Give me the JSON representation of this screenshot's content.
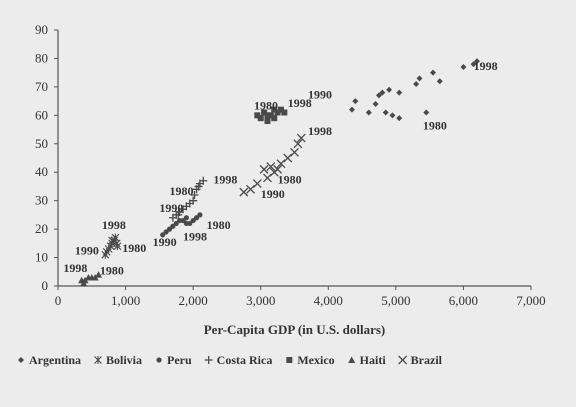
{
  "chart_data": {
    "type": "scatter",
    "title": "",
    "xlabel": "Per-Capita GDP (in U.S. dollars)",
    "ylabel": "",
    "xlim": [
      0,
      7000
    ],
    "ylim": [
      0,
      90
    ],
    "x_ticks": [
      0,
      1000,
      2000,
      3000,
      4000,
      5000,
      6000,
      7000
    ],
    "x_tick_labels": [
      "0",
      "1,000",
      "2,000",
      "3,000",
      "4,000",
      "5,000",
      "6,000",
      "7,000"
    ],
    "y_ticks": [
      0,
      10,
      20,
      30,
      40,
      50,
      60,
      70,
      80,
      90
    ],
    "y_tick_labels": [
      "0",
      "10",
      "20",
      "30",
      "40",
      "50",
      "60",
      "70",
      "80",
      "90"
    ],
    "grid": false,
    "legend_position": "bottom",
    "series": [
      {
        "name": "Argentina",
        "marker": "diamond",
        "points": [
          [
            4350,
            62
          ],
          [
            4400,
            65
          ],
          [
            4600,
            61
          ],
          [
            4700,
            64
          ],
          [
            4750,
            67
          ],
          [
            4800,
            68
          ],
          [
            4850,
            61
          ],
          [
            4900,
            69
          ],
          [
            4950,
            60
          ],
          [
            5050,
            59
          ],
          [
            5050,
            68
          ],
          [
            5300,
            71
          ],
          [
            5350,
            73
          ],
          [
            5450,
            61
          ],
          [
            5550,
            75
          ],
          [
            5650,
            72
          ],
          [
            6000,
            77
          ],
          [
            6150,
            78
          ],
          [
            6200,
            79
          ]
        ]
      },
      {
        "name": "Bolivia",
        "marker": "star",
        "points": [
          [
            700,
            11
          ],
          [
            720,
            12
          ],
          [
            750,
            13
          ],
          [
            780,
            14
          ],
          [
            800,
            15
          ],
          [
            830,
            16
          ],
          [
            850,
            17
          ],
          [
            870,
            15
          ],
          [
            880,
            14
          ],
          [
            800,
            16
          ]
        ]
      },
      {
        "name": "Peru",
        "marker": "circle",
        "points": [
          [
            1550,
            18
          ],
          [
            1600,
            19
          ],
          [
            1650,
            20
          ],
          [
            1700,
            21
          ],
          [
            1750,
            22
          ],
          [
            1800,
            23
          ],
          [
            1850,
            23
          ],
          [
            1900,
            24
          ],
          [
            1950,
            22
          ],
          [
            2000,
            23
          ],
          [
            2050,
            24
          ],
          [
            2100,
            25
          ],
          [
            1900,
            22
          ]
        ]
      },
      {
        "name": "Costa Rica",
        "marker": "plus",
        "points": [
          [
            1700,
            24
          ],
          [
            1750,
            25
          ],
          [
            1800,
            26
          ],
          [
            1850,
            27
          ],
          [
            1900,
            28
          ],
          [
            1950,
            29
          ],
          [
            2000,
            30
          ],
          [
            2020,
            32
          ],
          [
            2050,
            34
          ],
          [
            2080,
            35
          ],
          [
            2100,
            36
          ],
          [
            2150,
            37
          ],
          [
            1780,
            25
          ]
        ]
      },
      {
        "name": "Mexico",
        "marker": "square",
        "points": [
          [
            2950,
            60
          ],
          [
            3000,
            59
          ],
          [
            3050,
            61
          ],
          [
            3100,
            58
          ],
          [
            3150,
            60
          ],
          [
            3200,
            62
          ],
          [
            3250,
            61
          ],
          [
            3300,
            62
          ],
          [
            3350,
            61
          ],
          [
            3200,
            59
          ],
          [
            3100,
            60
          ]
        ]
      },
      {
        "name": "Haiti",
        "marker": "triangle",
        "points": [
          [
            350,
            2
          ],
          [
            400,
            2
          ],
          [
            450,
            3
          ],
          [
            500,
            3
          ],
          [
            550,
            3
          ],
          [
            600,
            4
          ],
          [
            380,
            1
          ]
        ]
      },
      {
        "name": "Brazil",
        "marker": "x",
        "points": [
          [
            2750,
            33
          ],
          [
            2850,
            34
          ],
          [
            2950,
            36
          ],
          [
            3050,
            41
          ],
          [
            3100,
            38
          ],
          [
            3150,
            42
          ],
          [
            3200,
            40
          ],
          [
            3250,
            41
          ],
          [
            3300,
            43
          ],
          [
            3400,
            45
          ],
          [
            3500,
            47
          ],
          [
            3550,
            50
          ],
          [
            3600,
            52
          ]
        ]
      }
    ],
    "annotations": [
      {
        "text": "1998",
        "x": 6150,
        "y": 76
      },
      {
        "text": "1990",
        "x": 3700,
        "y": 66
      },
      {
        "text": "1980",
        "x": 5400,
        "y": 55
      },
      {
        "text": "1980",
        "x": 2900,
        "y": 62
      },
      {
        "text": "1998",
        "x": 3400,
        "y": 63
      },
      {
        "text": "1998",
        "x": 3700,
        "y": 53
      },
      {
        "text": "1998",
        "x": 2300,
        "y": 36
      },
      {
        "text": "1980",
        "x": 3250,
        "y": 36
      },
      {
        "text": "1990",
        "x": 3000,
        "y": 31
      },
      {
        "text": "1980",
        "x": 1650,
        "y": 32
      },
      {
        "text": "1990",
        "x": 1500,
        "y": 26
      },
      {
        "text": "1980",
        "x": 2200,
        "y": 20
      },
      {
        "text": "1990",
        "x": 1400,
        "y": 14
      },
      {
        "text": "1998",
        "x": 1850,
        "y": 16
      },
      {
        "text": "1998",
        "x": 650,
        "y": 20
      },
      {
        "text": "1990",
        "x": 250,
        "y": 11
      },
      {
        "text": "1980",
        "x": 950,
        "y": 12
      },
      {
        "text": "1998",
        "x": 80,
        "y": 5
      },
      {
        "text": "1980",
        "x": 620,
        "y": 4
      }
    ]
  }
}
